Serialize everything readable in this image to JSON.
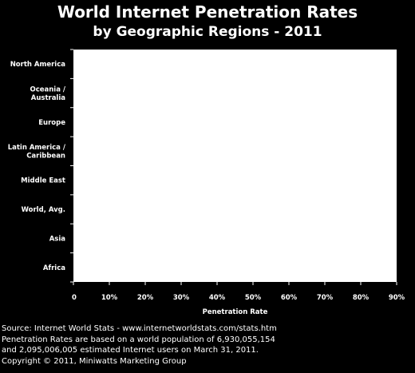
{
  "chart_data": {
    "type": "bar",
    "orientation": "horizontal",
    "title": "World Internet Penetration Rates",
    "subtitle": "by Geographic Regions - 2011",
    "categories": [
      "North America",
      "Oceania / Australia",
      "Europe",
      "Latin America / Caribbean",
      "Middle East",
      "World, Avg.",
      "Asia",
      "Africa"
    ],
    "category_lines": [
      [
        "North America"
      ],
      [
        "Oceania  /",
        "Australia"
      ],
      [
        "Europe"
      ],
      [
        "Latin America /",
        "Caribbean"
      ],
      [
        "Middle East"
      ],
      [
        "World, Avg."
      ],
      [
        "Asia"
      ],
      [
        "Africa"
      ]
    ],
    "values": [
      null,
      null,
      null,
      null,
      null,
      null,
      null,
      null
    ],
    "xlabel": "Penetration Rate",
    "ylabel": "",
    "xlim": [
      0,
      0.9
    ],
    "x_ticks": [
      0,
      0.1,
      0.2,
      0.3,
      0.4,
      0.5,
      0.6,
      0.7,
      0.8,
      0.9
    ],
    "x_tick_labels": [
      "0",
      "10%",
      "20%",
      "30%",
      "40%",
      "50%",
      "60%",
      "70%",
      "80%",
      "90%"
    ],
    "plot_background": "#ffffff",
    "page_background": "#000000",
    "grid": false
  },
  "notes": [
    "Source: Internet World Stats - www.internetworldstats.com/stats.htm",
    "Penetration Rates are based on a world population of 6,930,055,154",
    "and 2,095,006,005 estimated Internet users on March 31, 2011.",
    "Copyright © 2011, Miniwatts Marketing Group"
  ]
}
